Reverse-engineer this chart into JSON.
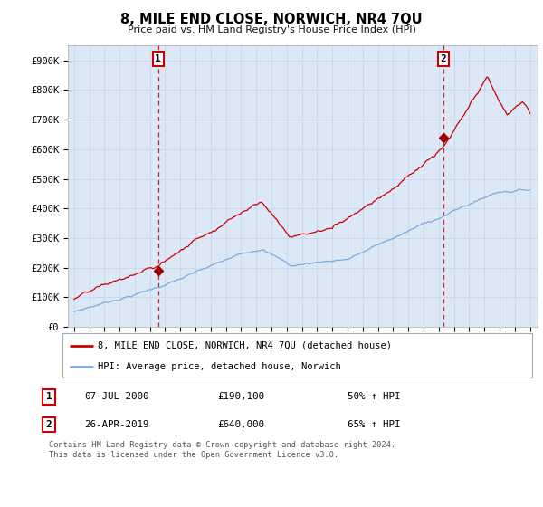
{
  "title": "8, MILE END CLOSE, NORWICH, NR4 7QU",
  "subtitle": "Price paid vs. HM Land Registry's House Price Index (HPI)",
  "ylim": [
    0,
    950000
  ],
  "yticks": [
    0,
    100000,
    200000,
    300000,
    400000,
    500000,
    600000,
    700000,
    800000,
    900000
  ],
  "ytick_labels": [
    "£0",
    "£100K",
    "£200K",
    "£300K",
    "£400K",
    "£500K",
    "£600K",
    "£700K",
    "£800K",
    "£900K"
  ],
  "sale1_date": 2000.54,
  "sale1_price": 190100,
  "sale2_date": 2019.32,
  "sale2_price": 640000,
  "red_line_color": "#cc0000",
  "blue_line_color": "#7aabe0",
  "sale_dot_color": "#990000",
  "vline_color": "#cc0000",
  "grid_color": "#c8d8e8",
  "bg_color": "#ffffff",
  "plot_bg_color": "#dce8f5",
  "legend_entry1": "8, MILE END CLOSE, NORWICH, NR4 7QU (detached house)",
  "legend_entry2": "HPI: Average price, detached house, Norwich",
  "annotation1_date": "07-JUL-2000",
  "annotation1_price": "£190,100",
  "annotation1_hpi": "50% ↑ HPI",
  "annotation2_date": "26-APR-2019",
  "annotation2_price": "£640,000",
  "annotation2_hpi": "65% ↑ HPI",
  "footer": "Contains HM Land Registry data © Crown copyright and database right 2024.\nThis data is licensed under the Open Government Licence v3.0."
}
